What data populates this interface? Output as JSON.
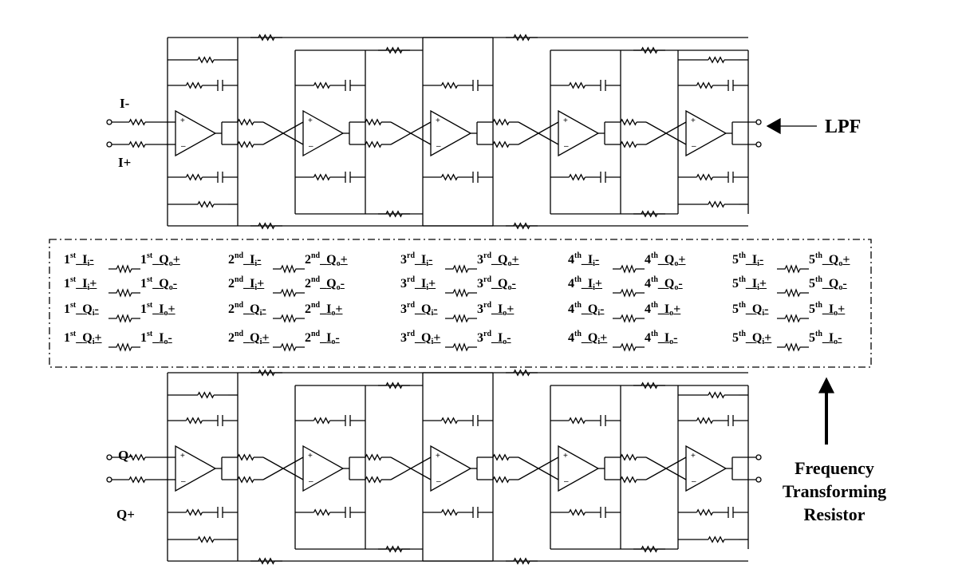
{
  "circuit": {
    "top_inputs": [
      "I-",
      "I+"
    ],
    "bottom_inputs": [
      "Q-",
      "Q+"
    ],
    "lpf_label": "LPF",
    "freq_resistor_lines": [
      "Frequency",
      "Transforming",
      "Resistor"
    ],
    "stages": [
      {
        "ord": "1",
        "suf": "st"
      },
      {
        "ord": "2",
        "suf": "nd"
      },
      {
        "ord": "3",
        "suf": "rd"
      },
      {
        "ord": "4",
        "suf": "th"
      },
      {
        "ord": "5",
        "suf": "th"
      }
    ],
    "mapping_pairs": [
      [
        {
          "n": "I",
          "s": "i",
          "p": "-"
        },
        {
          "n": "Q",
          "s": "o",
          "p": "+"
        }
      ],
      [
        {
          "n": "I",
          "s": "i",
          "p": "+"
        },
        {
          "n": "Q",
          "s": "o",
          "p": "-"
        }
      ],
      [
        {
          "n": "Q",
          "s": "i",
          "p": "-"
        },
        {
          "n": "I",
          "s": "o",
          "p": "+"
        }
      ],
      [
        {
          "n": "Q",
          "s": "i",
          "p": "+"
        },
        {
          "n": "I",
          "s": "o",
          "p": "-"
        }
      ]
    ]
  }
}
